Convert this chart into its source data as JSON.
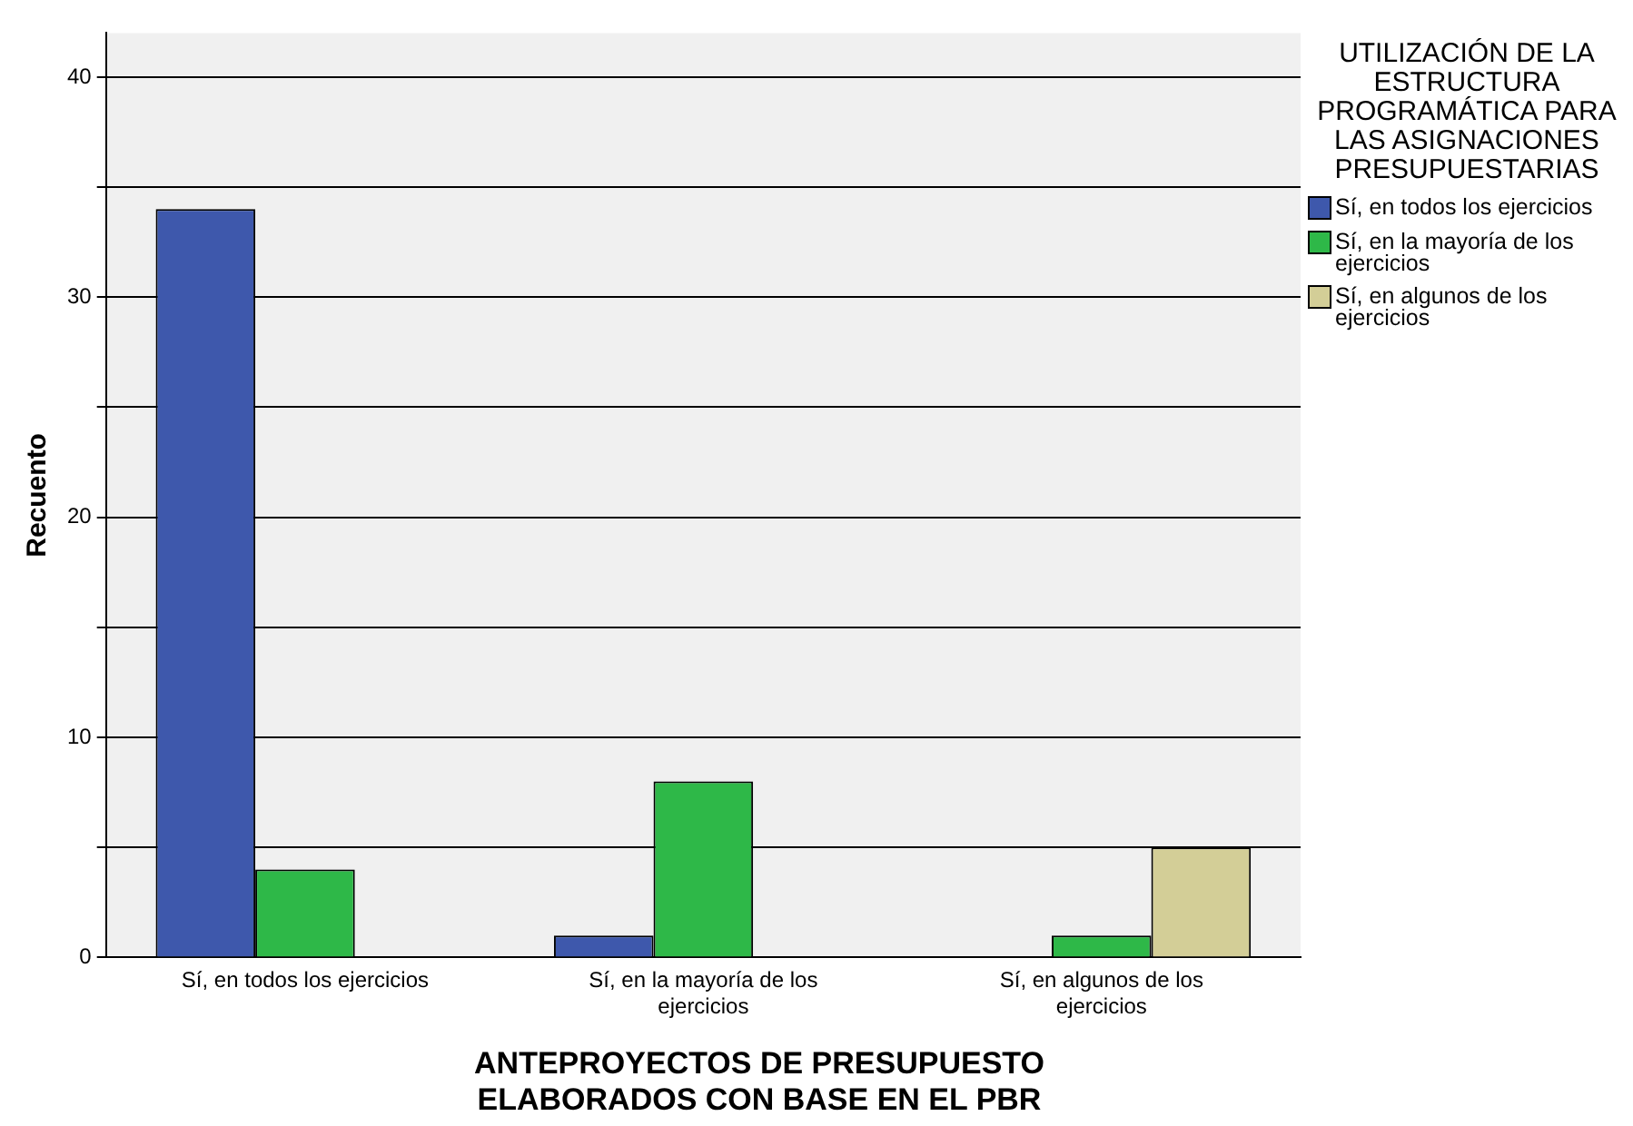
{
  "chart_data": {
    "type": "bar",
    "xlabel": "ANTEPROYECTOS DE PRESUPUESTO ELABORADOS CON BASE EN EL PBR",
    "ylabel": "Recuento",
    "legend_title": "UTILIZACIÓN DE LA ESTRUCTURA PROGRAMÁTICA PARA LAS ASIGNACIONES PRESUPUESTARIAS",
    "categories": [
      "Sí, en todos los ejercicios",
      "Sí, en la mayoría de los ejercicios",
      "Sí, en algunos de los ejercicios"
    ],
    "series": [
      {
        "name": "Sí, en todos los ejercicios",
        "color": "#3e58ac",
        "values": [
          34,
          1,
          null
        ]
      },
      {
        "name": "Sí, en la mayoría de los ejercicios",
        "color": "#2eb848",
        "values": [
          4,
          8,
          1
        ]
      },
      {
        "name": "Sí, en algunos de los ejercicios",
        "color": "#d3ce97",
        "values": [
          null,
          null,
          5
        ]
      }
    ],
    "ylim": [
      0,
      42
    ],
    "yticks": [
      0,
      {
        "value": 5,
        "label": null
      },
      10,
      {
        "value": 15,
        "label": null
      },
      20,
      {
        "value": 25,
        "label": null
      },
      30,
      {
        "value": 35,
        "label": null
      },
      40
    ],
    "grid": "y",
    "legend": "right"
  }
}
